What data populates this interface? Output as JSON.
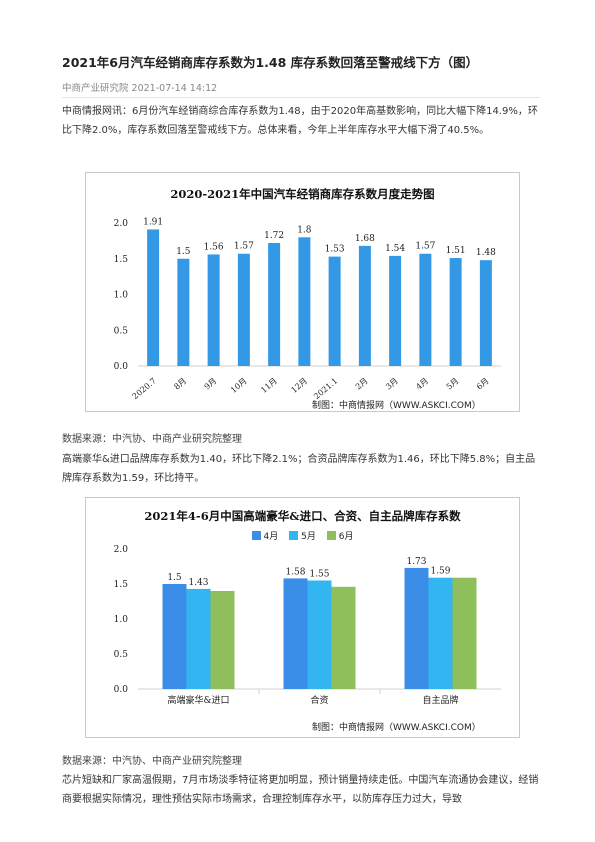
{
  "article": {
    "title": "2021年6月汽车经销商库存系数为1.48 库存系数回落至警戒线下方（图）",
    "source": "中商产业研究院",
    "date": "2021-07-14 14:12",
    "para1": "中商情报网讯：6月份汽车经销商综合库存系数为1.48，由于2020年高基数影响，同比大幅下降14.9%，环比下降2.0%，库存系数回落至警戒线下方。总体来看，今年上半年库存水平大幅下滑了40.5%。",
    "data_source_1": "数据来源：中汽协、中商产业研究院整理",
    "para2": "高端豪华&进口品牌库存系数为1.40，环比下降2.1%；合资品牌库存系数为1.46，环比下降5.8%；自主品牌库存系数为1.59，环比持平。",
    "data_source_2": "数据来源：中汽协、中商产业研究院整理",
    "para3": "芯片短缺和厂家高温假期，7月市场淡季特征将更加明显，预计销量持续走低。中国汽车流通协会建议，经销商要根据实际情况，理性预估实际市场需求，合理控制库存水平，以防库存压力过大，导致"
  },
  "chart_data": [
    {
      "type": "bar",
      "title": "2020-2021年中国汽车经销商库存系数月度走势图",
      "categories": [
        "2020.7",
        "8月",
        "9月",
        "10月",
        "11月",
        "12月",
        "2021.1",
        "2月",
        "3月",
        "4月",
        "5月",
        "6月"
      ],
      "values": [
        1.91,
        1.5,
        1.56,
        1.57,
        1.72,
        1.8,
        1.53,
        1.68,
        1.54,
        1.57,
        1.51,
        1.48
      ],
      "value_labels": [
        "1.91",
        "1.5",
        "1.56",
        "1.57",
        "1.72",
        "1.8",
        "1.53",
        "1.68",
        "1.54",
        "1.57",
        "1.51",
        "1.48"
      ],
      "yticks": [
        "0.0",
        "0.5",
        "1.0",
        "1.5",
        "2.0"
      ],
      "ylim": [
        0,
        2.0
      ],
      "color": "#3399e6",
      "credit": "制图：中商情报网（WWW.ASKCI.COM）"
    },
    {
      "type": "bar",
      "title": "2021年4-6月中国高端豪华&进口、合资、自主品牌库存系数",
      "categories": [
        "高端豪华&进口",
        "合资",
        "自主品牌"
      ],
      "series": [
        {
          "name": "4月",
          "values": [
            1.5,
            1.58,
            1.73
          ],
          "labels": [
            "1.5",
            "1.58",
            "1.73"
          ],
          "color": "#3b8ee8"
        },
        {
          "name": "5月",
          "values": [
            1.43,
            1.55,
            1.59
          ],
          "labels": [
            "1.43",
            "1.55",
            "1.59"
          ],
          "color": "#33b5f2"
        },
        {
          "name": "6月",
          "values": [
            1.4,
            1.46,
            1.59
          ],
          "labels": [
            "",
            "",
            ""
          ],
          "color": "#8fbf5a"
        }
      ],
      "yticks": [
        "0.0",
        "0.5",
        "1.0",
        "1.5",
        "2.0"
      ],
      "ylim": [
        0,
        2.0
      ],
      "legend": "top",
      "credit": "制图：中商情报网（WWW.ASKCI.COM）"
    }
  ]
}
